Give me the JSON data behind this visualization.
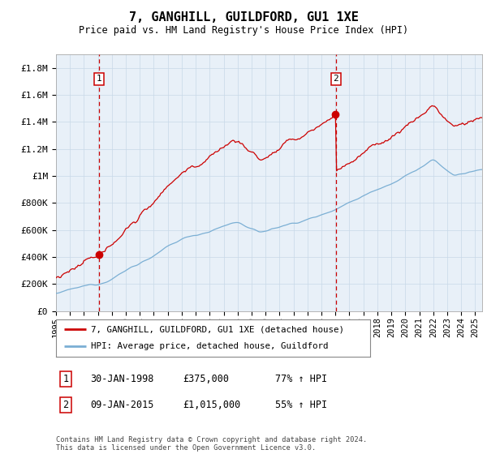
{
  "title": "7, GANGHILL, GUILDFORD, GU1 1XE",
  "subtitle": "Price paid vs. HM Land Registry's House Price Index (HPI)",
  "ylabel_ticks": [
    "£0",
    "£200K",
    "£400K",
    "£600K",
    "£800K",
    "£1M",
    "£1.2M",
    "£1.4M",
    "£1.6M",
    "£1.8M"
  ],
  "ytick_vals": [
    0,
    200000,
    400000,
    600000,
    800000,
    1000000,
    1200000,
    1400000,
    1600000,
    1800000
  ],
  "ylim": [
    0,
    1900000
  ],
  "xlim_start": 1995.0,
  "xlim_end": 2025.5,
  "hpi_color": "#7bafd4",
  "price_color": "#cc0000",
  "vline_color": "#cc0000",
  "plot_bg_color": "#e8f0f8",
  "purchase1_year": 1998.08,
  "purchase1_price": 375000,
  "purchase2_year": 2015.03,
  "purchase2_price": 1015000,
  "legend_label1": "7, GANGHILL, GUILDFORD, GU1 1XE (detached house)",
  "legend_label2": "HPI: Average price, detached house, Guildford",
  "sale1_label": "1",
  "sale1_date": "30-JAN-1998",
  "sale1_price_str": "£375,000",
  "sale1_hpi": "77% ↑ HPI",
  "sale2_label": "2",
  "sale2_date": "09-JAN-2015",
  "sale2_price_str": "£1,015,000",
  "sale2_hpi": "55% ↑ HPI",
  "footer": "Contains HM Land Registry data © Crown copyright and database right 2024.\nThis data is licensed under the Open Government Licence v3.0.",
  "bg_color": "#ffffff",
  "grid_color": "#c8d8e8"
}
